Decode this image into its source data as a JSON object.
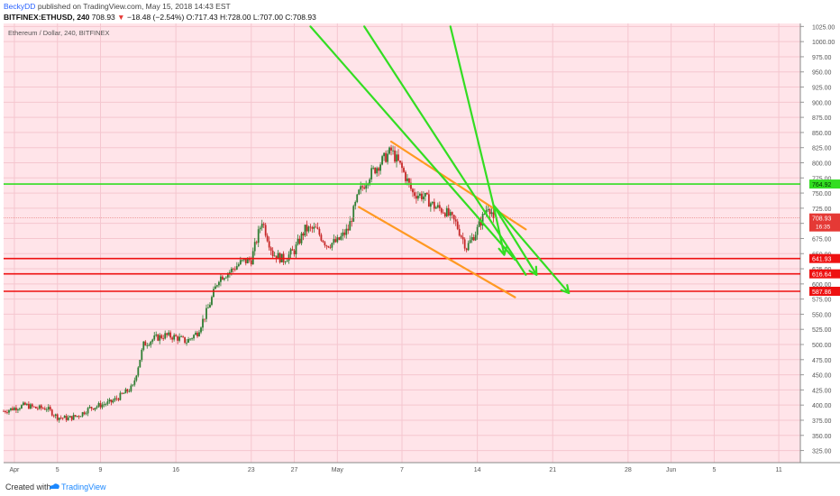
{
  "header": {
    "author": "BeckyDD",
    "published": "published on TradingView.com, May 15, 2018 14:43 EST",
    "symbol": "BITFINEX:ETHUSD, 240",
    "change_arrow": "▼",
    "change": "−18.48 (−2.54%)",
    "ohlc": "O:717.43 H:728.00 L:707.00 C:708.93"
  },
  "footer": {
    "created_with": "Created with",
    "brand": "TradingView"
  },
  "colors": {
    "background": "#ffe4e9",
    "bull": "#2e7d32",
    "bear": "#c62828",
    "green_line": "#33dd22",
    "orange_line": "#ff9922",
    "red_line": "#ee1111"
  },
  "chart_data": {
    "type": "candlestick",
    "title": "Ethereum / Dollar, 240, BITFINEX",
    "ylim": [
      305,
      1030
    ],
    "y_ticks": [
      325,
      350,
      375,
      400,
      425,
      450,
      475,
      500,
      525,
      550,
      575,
      600,
      625,
      650,
      675,
      700,
      725,
      750,
      775,
      800,
      825,
      850,
      875,
      900,
      925,
      950,
      975,
      1000,
      1025
    ],
    "x_ticks": [
      {
        "label": "Apr",
        "date": "2018-04-01"
      },
      {
        "label": "5",
        "date": "2018-04-05"
      },
      {
        "label": "9",
        "date": "2018-04-09"
      },
      {
        "label": "16",
        "date": "2018-04-16"
      },
      {
        "label": "23",
        "date": "2018-04-23"
      },
      {
        "label": "27",
        "date": "2018-04-27"
      },
      {
        "label": "May",
        "date": "2018-05-01"
      },
      {
        "label": "7",
        "date": "2018-05-07"
      },
      {
        "label": "14",
        "date": "2018-05-14"
      },
      {
        "label": "21",
        "date": "2018-05-21"
      },
      {
        "label": "28",
        "date": "2018-05-28"
      },
      {
        "label": "Jun",
        "date": "2018-06-01"
      },
      {
        "label": "5",
        "date": "2018-06-05"
      },
      {
        "label": "11",
        "date": "2018-06-11"
      }
    ],
    "close_path": [
      [
        "2018-03-31",
        390
      ],
      [
        "2018-04-01",
        395
      ],
      [
        "2018-04-02",
        400
      ],
      [
        "2018-04-03",
        395
      ],
      [
        "2018-04-04",
        395
      ],
      [
        "2018-04-05",
        380
      ],
      [
        "2018-04-06",
        378
      ],
      [
        "2018-04-07",
        383
      ],
      [
        "2018-04-08",
        395
      ],
      [
        "2018-04-09",
        400
      ],
      [
        "2018-04-10",
        405
      ],
      [
        "2018-04-11",
        417
      ],
      [
        "2018-04-12",
        430
      ],
      [
        "2018-04-13",
        500
      ],
      [
        "2018-04-14",
        510
      ],
      [
        "2018-04-15",
        515
      ],
      [
        "2018-04-16",
        512
      ],
      [
        "2018-04-17",
        505
      ],
      [
        "2018-04-18",
        520
      ],
      [
        "2018-04-19",
        560
      ],
      [
        "2018-04-20",
        610
      ],
      [
        "2018-04-21",
        620
      ],
      [
        "2018-04-22",
        635
      ],
      [
        "2018-04-23",
        640
      ],
      [
        "2018-04-24",
        705
      ],
      [
        "2018-04-25",
        650
      ],
      [
        "2018-04-26",
        640
      ],
      [
        "2018-04-27",
        655
      ],
      [
        "2018-04-28",
        690
      ],
      [
        "2018-04-29",
        690
      ],
      [
        "2018-04-30",
        665
      ],
      [
        "2018-05-01",
        670
      ],
      [
        "2018-05-02",
        690
      ],
      [
        "2018-05-03",
        750
      ],
      [
        "2018-05-04",
        780
      ],
      [
        "2018-05-05",
        800
      ],
      [
        "2018-05-06",
        820
      ],
      [
        "2018-05-07",
        790
      ],
      [
        "2018-05-08",
        750
      ],
      [
        "2018-05-09",
        745
      ],
      [
        "2018-05-10",
        728
      ],
      [
        "2018-05-11",
        720
      ],
      [
        "2018-05-12",
        700
      ],
      [
        "2018-05-13",
        660
      ],
      [
        "2018-05-14",
        690
      ],
      [
        "2018-05-15",
        730
      ],
      [
        "2018-05-15T14:43",
        708.93
      ]
    ],
    "horizontal_lines": [
      {
        "label": "764.92",
        "value": 764.92,
        "color": "green"
      },
      {
        "label": "641.93",
        "value": 641.93,
        "color": "red"
      },
      {
        "label": "616.64",
        "value": 616.64,
        "color": "red"
      },
      {
        "label": "587.86",
        "value": 587.86,
        "color": "red"
      }
    ],
    "price_marker": {
      "label": "708.93",
      "sub_label": "16:35",
      "value": 708.93
    },
    "trendlines": [
      {
        "color": "orange",
        "from": [
          "2018-05-06",
          835
        ],
        "to": [
          "2018-05-18T12:00",
          690
        ]
      },
      {
        "color": "orange",
        "from": [
          "2018-05-03",
          727
        ],
        "to": [
          "2018-05-17T12:00",
          578
        ]
      },
      {
        "color": "green",
        "from": [
          "2018-04-28T12:00",
          1025
        ],
        "to": [
          "2018-05-17T12:00",
          640
        ],
        "arrow": false
      },
      {
        "color": "green",
        "from": [
          "2018-05-03T12:00",
          1025
        ],
        "to": [
          "2018-05-18T12:00",
          615
        ],
        "arrow": false
      },
      {
        "color": "green",
        "from": [
          "2018-05-11T12:00",
          1025
        ],
        "to": [
          "2018-05-15T12:00",
          730
        ],
        "arrow": false
      },
      {
        "color": "green",
        "from": [
          "2018-05-15T12:00",
          730
        ],
        "to": [
          "2018-05-16T12:00",
          648
        ],
        "arrow": true
      },
      {
        "color": "green",
        "from": [
          "2018-05-15T12:00",
          730
        ],
        "to": [
          "2018-05-19T12:00",
          615
        ],
        "arrow": true
      },
      {
        "color": "green",
        "from": [
          "2018-05-15T12:00",
          730
        ],
        "to": [
          "2018-05-22T12:00",
          585
        ],
        "arrow": true
      }
    ]
  }
}
